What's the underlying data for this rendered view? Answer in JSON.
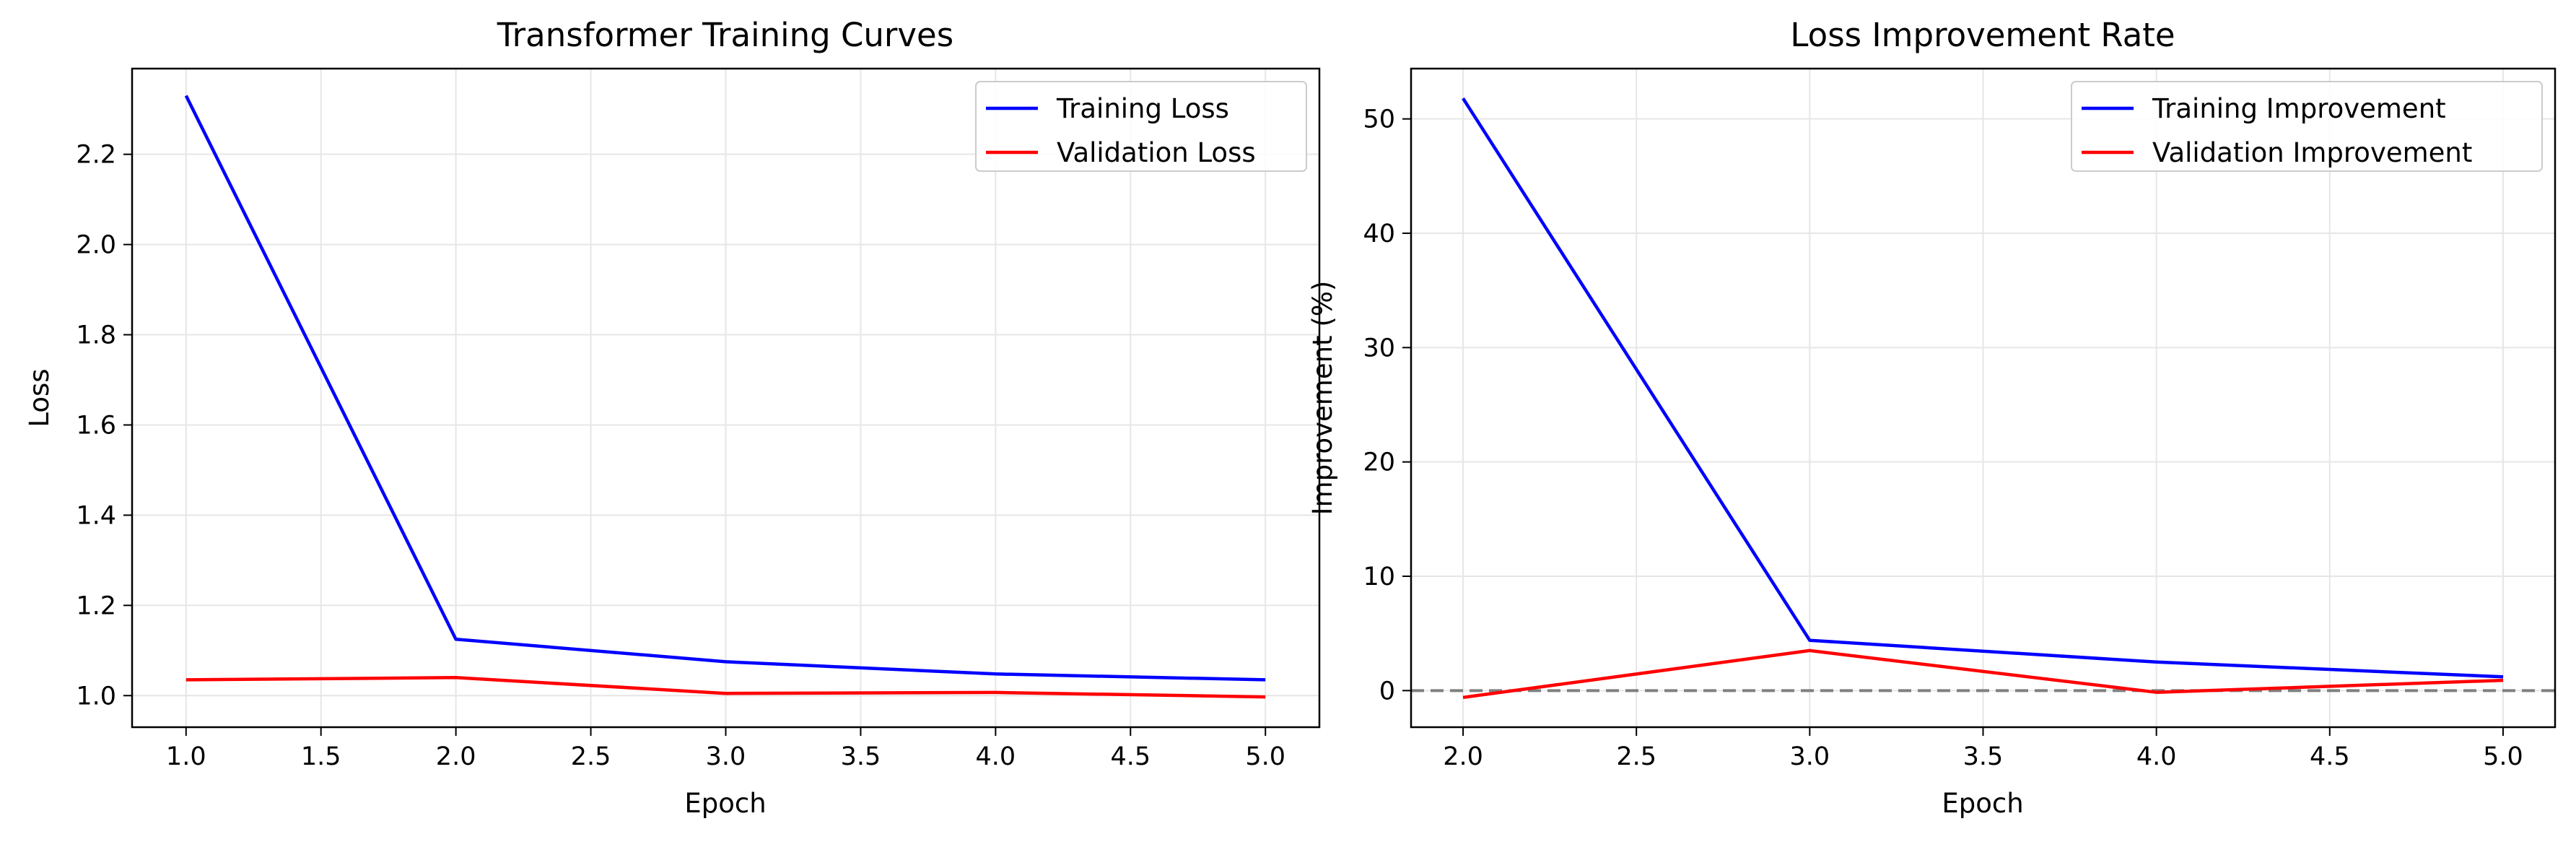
{
  "colors": {
    "training": "#0000ff",
    "validation": "#ff0000",
    "grid": "#e6e6e6",
    "zero_line": "#808080",
    "frame": "#000000",
    "legend_border": "#cccccc"
  },
  "chart_data": [
    {
      "type": "line",
      "title": "Transformer Training Curves",
      "xlabel": "Epoch",
      "ylabel": "Loss",
      "x": [
        1,
        2,
        3,
        4,
        5
      ],
      "xlim": [
        0.8,
        5.2
      ],
      "ylim": [
        0.93,
        2.39
      ],
      "xticks": [
        1.0,
        1.5,
        2.0,
        2.5,
        3.0,
        3.5,
        4.0,
        4.5,
        5.0
      ],
      "yticks": [
        1.0,
        1.2,
        1.4,
        1.6,
        1.8,
        2.0,
        2.2
      ],
      "xtick_labels": [
        "1.0",
        "1.5",
        "2.0",
        "2.5",
        "3.0",
        "3.5",
        "4.0",
        "4.5",
        "5.0"
      ],
      "ytick_labels": [
        "1.0",
        "1.2",
        "1.4",
        "1.6",
        "1.8",
        "2.0",
        "2.2"
      ],
      "grid": true,
      "legend_position": "top-right",
      "series": [
        {
          "name": "Training Loss",
          "color": "#0000ff",
          "values": [
            2.33,
            1.125,
            1.075,
            1.048,
            1.035
          ]
        },
        {
          "name": "Validation Loss",
          "color": "#ff0000",
          "values": [
            1.035,
            1.04,
            1.005,
            1.007,
            0.997
          ]
        }
      ]
    },
    {
      "type": "line",
      "title": "Loss Improvement Rate",
      "xlabel": "Epoch",
      "ylabel": "Improvement (%)",
      "x": [
        2,
        3,
        4,
        5
      ],
      "xlim": [
        1.85,
        5.15
      ],
      "ylim": [
        -3.2,
        54.4
      ],
      "xticks": [
        2.0,
        2.5,
        3.0,
        3.5,
        4.0,
        4.5,
        5.0
      ],
      "yticks": [
        0,
        10,
        20,
        30,
        40,
        50
      ],
      "xtick_labels": [
        "2.0",
        "2.5",
        "3.0",
        "3.5",
        "4.0",
        "4.5",
        "5.0"
      ],
      "ytick_labels": [
        "0",
        "10",
        "20",
        "30",
        "40",
        "50"
      ],
      "grid": true,
      "legend_position": "top-right",
      "reference_line": {
        "y": 0,
        "style": "dashed",
        "color": "#808080"
      },
      "series": [
        {
          "name": "Training Improvement",
          "color": "#0000ff",
          "values": [
            51.8,
            4.4,
            2.5,
            1.2
          ]
        },
        {
          "name": "Validation Improvement",
          "color": "#ff0000",
          "values": [
            -0.6,
            3.5,
            -0.15,
            0.9
          ]
        }
      ]
    }
  ]
}
